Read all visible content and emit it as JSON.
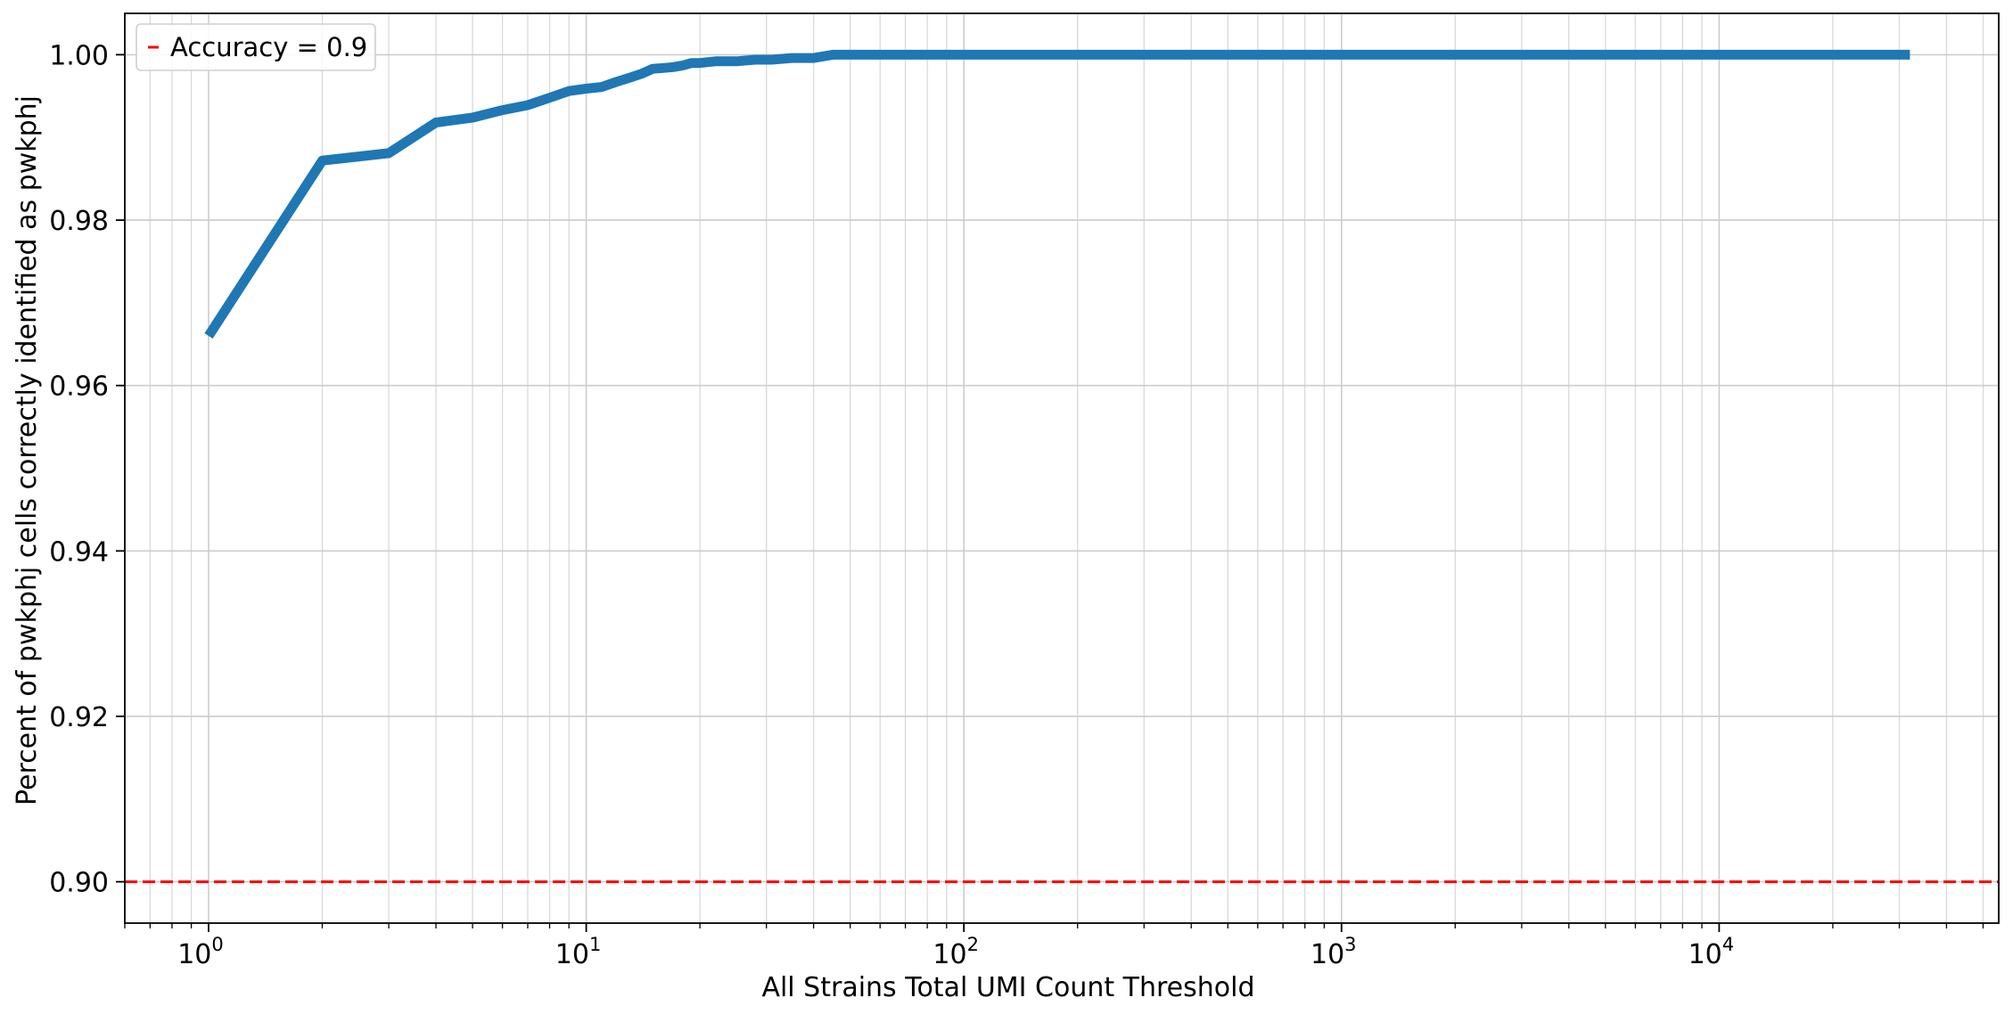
{
  "chart_data": {
    "type": "line",
    "title": "",
    "xlabel": "All Strains Total UMI Count Threshold",
    "ylabel": "Percent of pwkphj cells correctly identified as pwkphj",
    "x_scale": "log",
    "xlim": [
      0.6,
      55000
    ],
    "ylim": [
      0.895,
      1.005
    ],
    "grid": true,
    "legend_position": "upper left",
    "x_ticks": [
      {
        "value": 1,
        "base": "10",
        "exp": "0"
      },
      {
        "value": 10,
        "base": "10",
        "exp": "1"
      },
      {
        "value": 100,
        "base": "10",
        "exp": "2"
      },
      {
        "value": 1000,
        "base": "10",
        "exp": "3"
      },
      {
        "value": 10000,
        "base": "10",
        "exp": "4"
      }
    ],
    "y_ticks": [
      {
        "value": 0.9,
        "label": "0.90"
      },
      {
        "value": 0.92,
        "label": "0.92"
      },
      {
        "value": 0.94,
        "label": "0.94"
      },
      {
        "value": 0.96,
        "label": "0.96"
      },
      {
        "value": 0.98,
        "label": "0.98"
      },
      {
        "value": 1.0,
        "label": "1.00"
      }
    ],
    "series": [
      {
        "color": "#1f77b4",
        "x": [
          1,
          2,
          3,
          4,
          5,
          6,
          7,
          8,
          9,
          10,
          11,
          12,
          13,
          14,
          15,
          16,
          17,
          18,
          19,
          20,
          22,
          25,
          28,
          31,
          35,
          40,
          45,
          50,
          100,
          1000,
          10000,
          32000
        ],
        "y": [
          0.966,
          0.9872,
          0.9881,
          0.9918,
          0.9924,
          0.9933,
          0.9939,
          0.9948,
          0.9956,
          0.9959,
          0.9961,
          0.9967,
          0.9972,
          0.9977,
          0.9983,
          0.9984,
          0.9985,
          0.9987,
          0.999,
          0.999,
          0.9992,
          0.9992,
          0.9994,
          0.9994,
          0.9996,
          0.9996,
          1.0,
          1.0,
          1.0,
          1.0,
          1.0,
          1.0
        ]
      }
    ],
    "reference_lines": [
      {
        "name": "Accuracy = 0.9",
        "y": 0.9,
        "color": "#ff0000",
        "style": "dashed"
      }
    ]
  }
}
